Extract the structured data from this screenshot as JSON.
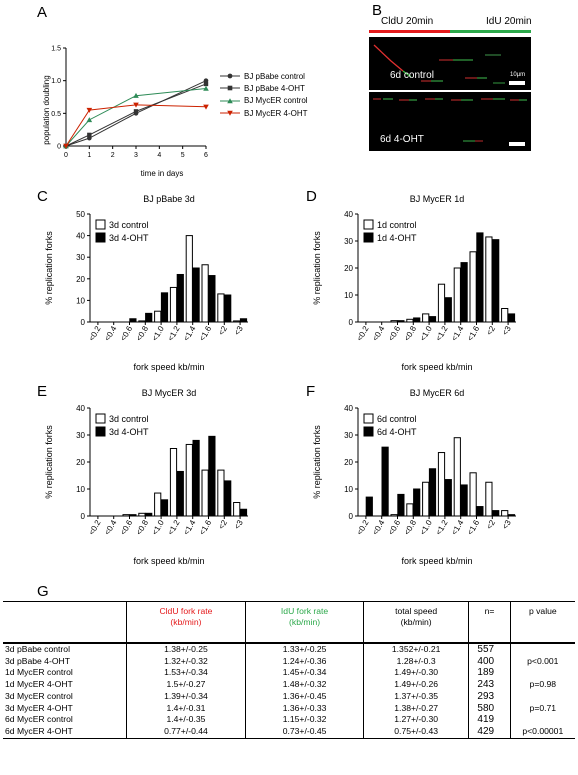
{
  "panels": {
    "A": "A",
    "B": "B",
    "C": "C",
    "D": "D",
    "E": "E",
    "F": "F",
    "G": "G"
  },
  "colors": {
    "red": "#e41a1c",
    "green": "#2ba84a",
    "black": "#000000",
    "gray": "#555555"
  },
  "panel_a": {
    "ylabel": "population doubling",
    "xlabel": "time in days",
    "legend": [
      {
        "name": "BJ pBabe control",
        "marker": "circle",
        "color": "#333333"
      },
      {
        "name": "BJ pBabe 4-OHT",
        "marker": "square",
        "color": "#333333"
      },
      {
        "name": "BJ MycER control",
        "marker": "triangle-up",
        "color": "#2e8b57"
      },
      {
        "name": "BJ MycER 4-OHT",
        "marker": "triangle-down",
        "color": "#cc2200"
      }
    ]
  },
  "panel_b": {
    "cldu_label": "CldU 20min",
    "idu_label": "IdU 20min",
    "scale_label": "10µm",
    "image1_label": "6d control",
    "image2_label": "6d 4-OHT"
  },
  "hist_common": {
    "ylabel": "% replication forks",
    "xlabel": "fork speed kb/min",
    "categories": [
      "<0.2",
      "<0.4",
      "<0.6",
      "<0.8",
      "<1.0",
      "<1.2",
      "<1.4",
      "<1.6",
      "<2",
      "<3"
    ]
  },
  "chart_data": [
    {
      "type": "line",
      "id": "A",
      "xlabel": "time in days",
      "ylabel": "population doubling",
      "xlim": [
        0,
        6
      ],
      "ylim": [
        0,
        1.5
      ],
      "xticks": [
        0,
        1,
        2,
        3,
        4,
        5,
        6
      ],
      "yticks": [
        0,
        0.5,
        1.0,
        1.5
      ],
      "series": [
        {
          "name": "BJ pBabe control",
          "x": [
            0,
            1,
            3,
            6
          ],
          "y": [
            0,
            0.12,
            0.5,
            1.0
          ]
        },
        {
          "name": "BJ pBabe 4-OHT",
          "x": [
            0,
            1,
            3,
            6
          ],
          "y": [
            0,
            0.17,
            0.53,
            0.95
          ]
        },
        {
          "name": "BJ MycER control",
          "x": [
            0,
            1,
            3,
            6
          ],
          "y": [
            0,
            0.4,
            0.77,
            0.88
          ]
        },
        {
          "name": "BJ MycER 4-OHT",
          "x": [
            0,
            1,
            3,
            6
          ],
          "y": [
            0,
            0.55,
            0.63,
            0.6
          ]
        }
      ]
    },
    {
      "type": "bar",
      "id": "C",
      "title": "BJ pBabe 3d",
      "xlabel": "fork speed kb/min",
      "ylabel": "% replication forks",
      "categories": [
        "<0.2",
        "<0.4",
        "<0.6",
        "<0.8",
        "<1.0",
        "<1.2",
        "<1.4",
        "<1.6",
        "<2",
        "<3"
      ],
      "ylim": [
        0,
        50
      ],
      "yticks": [
        0,
        10,
        20,
        30,
        40,
        50
      ],
      "series": [
        {
          "name": "3d control",
          "values": [
            0,
            0,
            0,
            0.5,
            5,
            16,
            40,
            26.5,
            13,
            0.5
          ]
        },
        {
          "name": "3d 4-OHT",
          "values": [
            0,
            0,
            1.5,
            4,
            13.5,
            22,
            25,
            21.5,
            12.5,
            1.5
          ]
        }
      ]
    },
    {
      "type": "bar",
      "id": "D",
      "title": "BJ MycER 1d",
      "xlabel": "fork speed kb/min",
      "ylabel": "% replication forks",
      "categories": [
        "<0.2",
        "<0.4",
        "<0.6",
        "<0.8",
        "<1.0",
        "<1.2",
        "<1.4",
        "<1.6",
        "<2",
        "<3"
      ],
      "ylim": [
        0,
        40
      ],
      "yticks": [
        0,
        10,
        20,
        30,
        40
      ],
      "series": [
        {
          "name": "1d control",
          "values": [
            0,
            0,
            0.5,
            1,
            3,
            14,
            20,
            26,
            31.5,
            5
          ]
        },
        {
          "name": "1d 4-OHT",
          "values": [
            0,
            0,
            0.5,
            1.5,
            2,
            9,
            22,
            33,
            30.5,
            3
          ]
        }
      ]
    },
    {
      "type": "bar",
      "id": "E",
      "title": "BJ MycER 3d",
      "xlabel": "fork speed kb/min",
      "ylabel": "% replication forks",
      "categories": [
        "<0.2",
        "<0.4",
        "<0.6",
        "<0.8",
        "<1.0",
        "<1.2",
        "<1.4",
        "<1.6",
        "<2",
        "<3"
      ],
      "ylim": [
        0,
        40
      ],
      "yticks": [
        0,
        10,
        20,
        30,
        40
      ],
      "series": [
        {
          "name": "3d control",
          "values": [
            0,
            0,
            0.5,
            1,
            8.5,
            25,
            26.5,
            17,
            17,
            5
          ]
        },
        {
          "name": "3d 4-OHT",
          "values": [
            0,
            0,
            0.5,
            1,
            6,
            16.5,
            28,
            29.5,
            13,
            2.5
          ]
        }
      ]
    },
    {
      "type": "bar",
      "id": "F",
      "title": "BJ MycER 6d",
      "xlabel": "fork speed kb/min",
      "ylabel": "% replication forks",
      "categories": [
        "<0.2",
        "<0.4",
        "<0.6",
        "<0.8",
        "<1.0",
        "<1.2",
        "<1.4",
        "<1.6",
        "<2",
        "<3"
      ],
      "ylim": [
        0,
        40
      ],
      "yticks": [
        0,
        10,
        20,
        30,
        40
      ],
      "series": [
        {
          "name": "6d control",
          "values": [
            0,
            0,
            0.5,
            4.5,
            12.5,
            23.5,
            29,
            16,
            12.5,
            2
          ]
        },
        {
          "name": "6d 4-OHT",
          "values": [
            7,
            25.5,
            8,
            10,
            17.5,
            13.5,
            11.5,
            3.5,
            2,
            0.5
          ]
        }
      ]
    }
  ],
  "table": {
    "headers": [
      {
        "text": "",
        "color": "#000000"
      },
      {
        "text": "CldU fork rate\n(kb/min)",
        "color": "#e41a1c"
      },
      {
        "text": "IdU fork rate\n(kb/min)",
        "color": "#2ba84a"
      },
      {
        "text": "total speed\n(kb/min)",
        "color": "#000000"
      },
      {
        "text": "n=",
        "color": "#000000"
      },
      {
        "text": "p value",
        "color": "#000000"
      }
    ],
    "rows": [
      [
        "3d pBabe control",
        "1.38+/-0.25",
        "1.33+/-0.25",
        "1.352+/-0.21",
        "557",
        ""
      ],
      [
        "3d pBabe 4-OHT",
        "1.32+/-0.32",
        "1.24+/-0.36",
        "1.28+/-0.3",
        "400",
        "p<0.001"
      ],
      [
        "1d MycER control",
        "1.53+/-0.34",
        "1.45+/-0.34",
        "1.49+/-0.30",
        "189",
        ""
      ],
      [
        "1d MycER 4-OHT",
        "1.5+/-0.27",
        "1.48+/-0.32",
        "1.49+/-0.26",
        "243",
        "p=0.98"
      ],
      [
        "3d MycER control",
        "1.39+/-0.34",
        "1.36+/-0.45",
        "1.37+/-0.35",
        "293",
        ""
      ],
      [
        "3d MycER 4-OHT",
        "1.4+/-0.31",
        "1.36+/-0.33",
        "1.38+/-0.27",
        "580",
        "p=0.71"
      ],
      [
        "6d MycER control",
        "1.4+/-0.35",
        "1.15+/-0.32",
        "1.27+/-0.30",
        "419",
        ""
      ],
      [
        "6d MycER 4-OHT",
        "0.77+/-0.44",
        "0.73+/-0.45",
        "0.75+/-0.43",
        "429",
        "p<0.00001"
      ]
    ]
  }
}
